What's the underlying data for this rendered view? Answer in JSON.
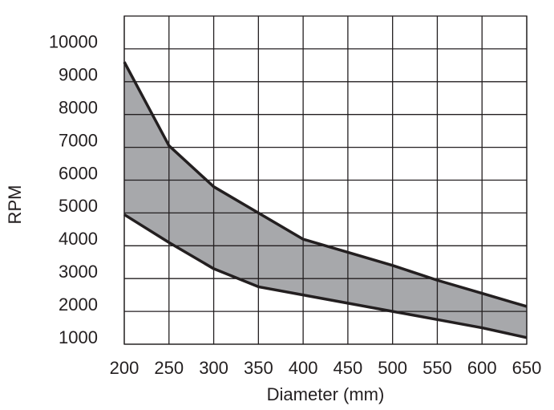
{
  "chart_data": {
    "type": "area",
    "xlabel": "Diameter (mm)",
    "ylabel": "RPM",
    "x": [
      200,
      250,
      300,
      350,
      400,
      450,
      500,
      550,
      600,
      650
    ],
    "series": [
      {
        "color": "#231f20",
        "values": [
          9600,
          7050,
          5800,
          5000,
          4200,
          3800,
          3400,
          2950,
          2550,
          2150
        ]
      },
      {
        "color": "#231f20",
        "values": [
          4950,
          4100,
          3300,
          2750,
          2500,
          2250,
          2000,
          1750,
          1500,
          1200
        ]
      }
    ],
    "fill": "#a7a8ab",
    "xlim": [
      200,
      650
    ],
    "xticks": [
      200,
      250,
      300,
      350,
      400,
      450,
      500,
      550,
      600,
      650
    ],
    "ylim": [
      1000,
      11000
    ],
    "yticks": [
      1000,
      2000,
      3000,
      4000,
      5000,
      6000,
      7000,
      8000,
      9000,
      10000
    ],
    "grid": true
  }
}
